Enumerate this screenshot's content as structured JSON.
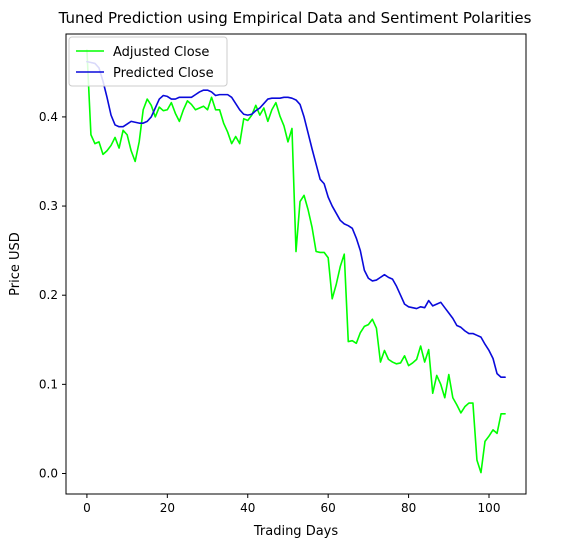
{
  "chart_data": {
    "type": "line",
    "title": "Tuned Prediction using Empirical Data and Sentiment Polarities",
    "xlabel": "Trading Days",
    "ylabel": "Price USD",
    "xlim": [
      -5.2,
      109.2
    ],
    "ylim": [
      -0.023,
      0.493
    ],
    "xticks": [
      0,
      20,
      40,
      60,
      80,
      100
    ],
    "xtick_labels": [
      "0",
      "20",
      "40",
      "60",
      "80",
      "100"
    ],
    "yticks": [
      0.0,
      0.1,
      0.2,
      0.3,
      0.4
    ],
    "ytick_labels": [
      "0.0",
      "0.1",
      "0.2",
      "0.3",
      "0.4"
    ],
    "grid": false,
    "legend_position": "top-left",
    "series": [
      {
        "name": "Adjusted Close",
        "color": "#00ff00",
        "x": [
          0,
          1,
          2,
          3,
          4,
          5,
          6,
          7,
          8,
          9,
          10,
          11,
          12,
          13,
          14,
          15,
          16,
          17,
          18,
          19,
          20,
          21,
          22,
          23,
          24,
          25,
          26,
          27,
          28,
          29,
          30,
          31,
          32,
          33,
          34,
          35,
          36,
          37,
          38,
          39,
          40,
          41,
          42,
          43,
          44,
          45,
          46,
          47,
          48,
          49,
          50,
          51,
          52,
          53,
          54,
          55,
          56,
          57,
          58,
          59,
          60,
          61,
          62,
          63,
          64,
          65,
          66,
          67,
          68,
          69,
          70,
          71,
          72,
          73,
          74,
          75,
          76,
          77,
          78,
          79,
          80,
          81,
          82,
          83,
          84,
          85,
          86,
          87,
          88,
          89,
          90,
          91,
          92,
          93,
          94,
          95,
          96,
          97,
          98,
          99,
          100,
          101,
          102,
          103,
          104
        ],
        "values": [
          0.475,
          0.38,
          0.37,
          0.372,
          0.358,
          0.362,
          0.368,
          0.377,
          0.365,
          0.385,
          0.38,
          0.362,
          0.35,
          0.372,
          0.408,
          0.42,
          0.413,
          0.4,
          0.411,
          0.407,
          0.408,
          0.416,
          0.404,
          0.395,
          0.408,
          0.418,
          0.414,
          0.408,
          0.41,
          0.412,
          0.408,
          0.422,
          0.408,
          0.408,
          0.393,
          0.383,
          0.37,
          0.378,
          0.37,
          0.398,
          0.396,
          0.402,
          0.413,
          0.402,
          0.41,
          0.395,
          0.408,
          0.416,
          0.401,
          0.39,
          0.372,
          0.387,
          0.249,
          0.305,
          0.312,
          0.296,
          0.276,
          0.249,
          0.248,
          0.248,
          0.242,
          0.196,
          0.212,
          0.232,
          0.246,
          0.148,
          0.149,
          0.146,
          0.158,
          0.165,
          0.167,
          0.173,
          0.163,
          0.125,
          0.138,
          0.128,
          0.125,
          0.123,
          0.124,
          0.132,
          0.121,
          0.124,
          0.128,
          0.143,
          0.125,
          0.139,
          0.09,
          0.11,
          0.1,
          0.085,
          0.111,
          0.085,
          0.077,
          0.068,
          0.075,
          0.079,
          0.079,
          0.015,
          0.001,
          0.036,
          0.042,
          0.049,
          0.045,
          0.067,
          0.067
        ]
      },
      {
        "name": "Predicted Close",
        "color": "#0a0adb",
        "x": [
          0,
          1,
          2,
          3,
          4,
          5,
          6,
          7,
          8,
          9,
          10,
          11,
          12,
          13,
          14,
          15,
          16,
          17,
          18,
          19,
          20,
          21,
          22,
          23,
          24,
          25,
          26,
          27,
          28,
          29,
          30,
          31,
          32,
          33,
          34,
          35,
          36,
          37,
          38,
          39,
          40,
          41,
          42,
          43,
          44,
          45,
          46,
          47,
          48,
          49,
          50,
          51,
          52,
          53,
          54,
          55,
          56,
          57,
          58,
          59,
          60,
          61,
          62,
          63,
          64,
          65,
          66,
          67,
          68,
          69,
          70,
          71,
          72,
          73,
          74,
          75,
          76,
          77,
          78,
          79,
          80,
          81,
          82,
          83,
          84,
          85,
          86,
          87,
          88,
          89,
          90,
          91,
          92,
          93,
          94,
          95,
          96,
          97,
          98,
          99,
          100,
          101,
          102,
          103,
          104
        ],
        "values": [
          0.462,
          0.461,
          0.46,
          0.455,
          0.44,
          0.422,
          0.402,
          0.391,
          0.389,
          0.389,
          0.392,
          0.395,
          0.394,
          0.393,
          0.393,
          0.395,
          0.4,
          0.41,
          0.42,
          0.424,
          0.423,
          0.42,
          0.42,
          0.422,
          0.422,
          0.422,
          0.422,
          0.425,
          0.428,
          0.43,
          0.43,
          0.428,
          0.424,
          0.425,
          0.425,
          0.425,
          0.422,
          0.415,
          0.408,
          0.403,
          0.402,
          0.403,
          0.407,
          0.41,
          0.415,
          0.42,
          0.421,
          0.421,
          0.421,
          0.422,
          0.422,
          0.421,
          0.419,
          0.414,
          0.4,
          0.382,
          0.364,
          0.347,
          0.33,
          0.325,
          0.31,
          0.3,
          0.292,
          0.284,
          0.28,
          0.278,
          0.275,
          0.264,
          0.25,
          0.228,
          0.219,
          0.216,
          0.217,
          0.22,
          0.223,
          0.22,
          0.218,
          0.21,
          0.2,
          0.19,
          0.187,
          0.186,
          0.185,
          0.187,
          0.186,
          0.194,
          0.188,
          0.19,
          0.192,
          0.186,
          0.18,
          0.174,
          0.166,
          0.164,
          0.16,
          0.157,
          0.157,
          0.155,
          0.153,
          0.145,
          0.138,
          0.129,
          0.112,
          0.108,
          0.108
        ]
      }
    ]
  }
}
